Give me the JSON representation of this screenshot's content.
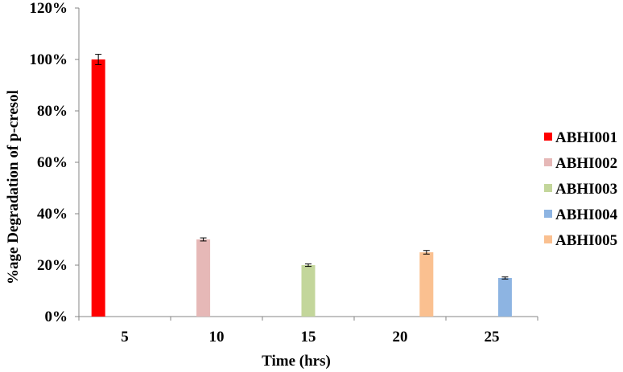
{
  "chart_data": {
    "type": "bar",
    "xlabel": "Time (hrs)",
    "ylabel": "%age Degradation of p-cresol",
    "ylim": [
      0,
      120
    ],
    "y_ticks": [
      "0%",
      "20%",
      "40%",
      "60%",
      "80%",
      "100%",
      "120%"
    ],
    "categories": [
      "5",
      "10",
      "15",
      "20",
      "25"
    ],
    "grid": false,
    "legend_position": "right",
    "series": [
      {
        "name": "ABHI001",
        "color": "#FF0000",
        "values": [
          100,
          null,
          null,
          null,
          null
        ],
        "errors": [
          2,
          null,
          null,
          null,
          null
        ]
      },
      {
        "name": "ABHI002",
        "color": "#E6B8B7",
        "values": [
          null,
          30,
          null,
          null,
          null
        ],
        "errors": [
          null,
          0.6,
          null,
          null,
          null
        ]
      },
      {
        "name": "ABHI003",
        "color": "#C3D69B",
        "values": [
          null,
          null,
          20,
          null,
          null
        ],
        "errors": [
          null,
          null,
          0.5,
          null,
          null
        ]
      },
      {
        "name": "ABHI004",
        "color": "#8DB4E2",
        "values": [
          null,
          null,
          null,
          null,
          15
        ],
        "errors": [
          null,
          null,
          null,
          null,
          0.4
        ]
      },
      {
        "name": "ABHI005",
        "color": "#FAC090",
        "values": [
          null,
          null,
          null,
          25,
          null
        ],
        "errors": [
          null,
          null,
          null,
          0.7,
          null
        ]
      }
    ]
  }
}
